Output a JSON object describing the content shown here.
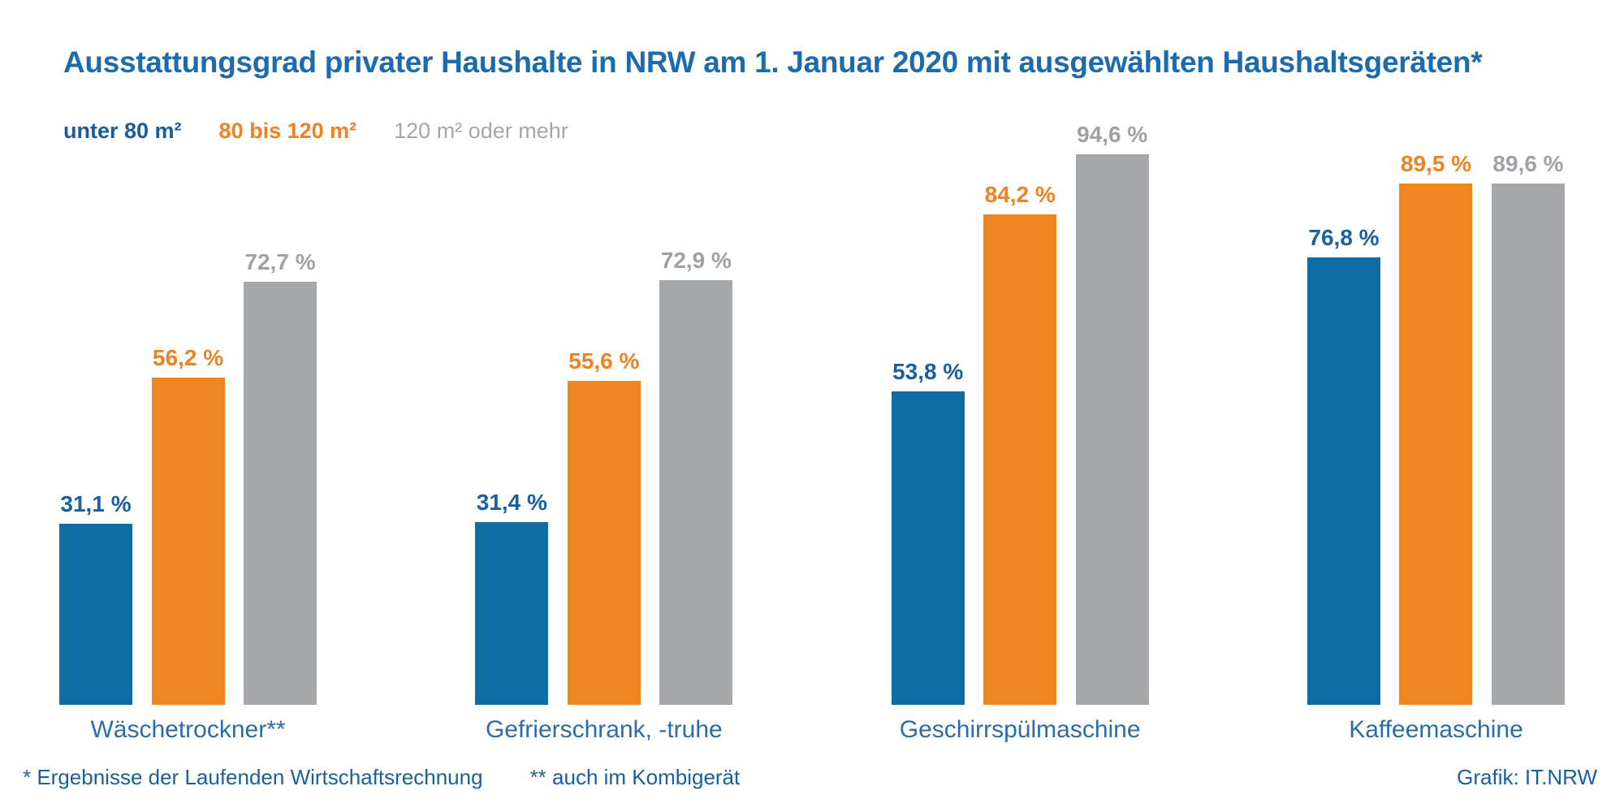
{
  "title": "Ausstattungsgrad privater Haushalte in NRW am 1. Januar 2020 mit ausgewählten Haushaltsgeräten*",
  "colors": {
    "title_text": "#1d6bac",
    "blue_bar": "#0f6ca5",
    "blue_text": "#1a5f9e",
    "orange_bar": "#f0861f",
    "orange_text": "#ef8220",
    "gray_bar": "#a6a7a9",
    "gray_text": "#9fa1a4",
    "category_text": "#2b6ca9",
    "footer_text": "#1a5f9e"
  },
  "legend": [
    {
      "label": "unter 80 m²",
      "color": "#1a5b99",
      "weight": "bold"
    },
    {
      "label": "80 bis 120 m²",
      "color": "#ef8220",
      "weight": "bold"
    },
    {
      "label": "120 m² oder mehr",
      "color": "#a5a6a8",
      "weight": "regular"
    }
  ],
  "chart_data": {
    "type": "bar",
    "title": "Ausstattungsgrad privater Haushalte in NRW am 1. Januar 2020 mit ausgewählten Haushaltsgeräten*",
    "categories": [
      "Wäschetrockner**",
      "Gefrierschrank, -truhe",
      "Geschirrspülmaschine",
      "Kaffeemaschine"
    ],
    "series": [
      {
        "name": "unter 80 m²",
        "bar_color": "#0f6ca5",
        "label_color": "#1a5f9e",
        "values": [
          31.1,
          31.4,
          53.8,
          76.8
        ],
        "labels": [
          "31,1 %",
          "31,4 %",
          "53,8 %",
          "76,8 %"
        ]
      },
      {
        "name": "80 bis 120 m²",
        "bar_color": "#f0861f",
        "label_color": "#ef8220",
        "values": [
          56.2,
          55.6,
          84.2,
          89.5
        ],
        "labels": [
          "56,2 %",
          "55,6 %",
          "84,2 %",
          "89,5 %"
        ]
      },
      {
        "name": "120 m² oder mehr",
        "bar_color": "#a6a7a9",
        "label_color": "#9fa1a4",
        "values": [
          72.7,
          72.9,
          94.6,
          89.6
        ],
        "labels": [
          "72,7 %",
          "72,9 %",
          "94,6 %",
          "89,6 %"
        ]
      }
    ],
    "ylim": [
      0,
      100
    ],
    "grid": false,
    "axes_visible": false,
    "value_labels_position": "above-bar",
    "legend_position": "top-left"
  },
  "footer": {
    "footnote1": "* Ergebnisse der Laufenden Wirtschaftsrechnung",
    "footnote2": "** auch im Kombigerät",
    "credit": "Grafik: IT.NRW"
  }
}
